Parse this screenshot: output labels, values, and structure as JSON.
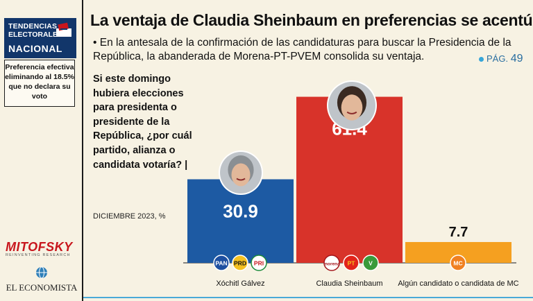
{
  "badge": {
    "line1": "TENDENCIAS",
    "line2": "ELECTORALES",
    "line3": "NACIONAL",
    "icon": "ballot-box-icon"
  },
  "note": "Preferencia efectiva eliminando al 18.5% que no declara su voto",
  "title": "La ventaja de Claudia Sheinbaum en preferencias se acentúa",
  "subtitle": "• En la antesala de la confirmación de las candidaturas para buscar la Presidencia de la República, la abanderada de Morena-PT-PVEM consolida su ventaja.",
  "page_ref": {
    "label": "PÁG.",
    "number": "49"
  },
  "question": "Si este domingo hubiera elecciones para presidenta o presidente de la República, ¿por cuál partido, alianza o candidata votaría? |",
  "date_note": "DICIEMBRE 2023, %",
  "logos": {
    "mitofsky": "MITOFSKY",
    "mitofsky_sub": "REINVENTING RESEARCH",
    "economista": "EL ECONOMISTA"
  },
  "parties": {
    "pan": "PAN",
    "prd": "PRD",
    "pri": "PRI",
    "morena": "morena",
    "pt": "PT",
    "mc": "MC"
  },
  "colors": {
    "blue": "#1d5aa3",
    "red": "#d8332a",
    "orange": "#f5a020",
    "navy": "#12366a",
    "accent": "#4aa9d8"
  },
  "chart_data": {
    "type": "bar",
    "categories": [
      "Xóchitl Gálvez",
      "Claudia Sheinbaum",
      "Algún candidato o candidata de MC"
    ],
    "values": [
      30.9,
      61.4,
      7.7
    ],
    "value_labels": [
      "30.9",
      "61.4",
      "7.7"
    ],
    "ylim": [
      0,
      70
    ],
    "unit": "%"
  }
}
